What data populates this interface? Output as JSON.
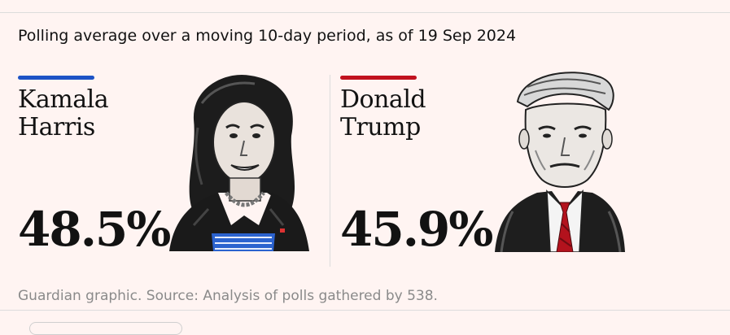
{
  "subtitle": "Polling average over a moving 10-day period, as of 19 Sep 2024",
  "source": "Guardian graphic. Source: Analysis of polls gathered by 538.",
  "chart_data": {
    "type": "table",
    "title": "Polling average over a moving 10-day period, as of 19 Sep 2024",
    "unit": "%",
    "candidates": [
      {
        "name_line1": "Kamala",
        "name_line2": "Harris",
        "value": 48.5,
        "display": "48.5%",
        "color": "#1d53c6",
        "portrait": "kamala-harris-portrait"
      },
      {
        "name_line1": "Donald",
        "name_line2": "Trump",
        "value": 45.9,
        "display": "45.9%",
        "color": "#c1121f",
        "portrait": "donald-trump-portrait"
      }
    ]
  }
}
